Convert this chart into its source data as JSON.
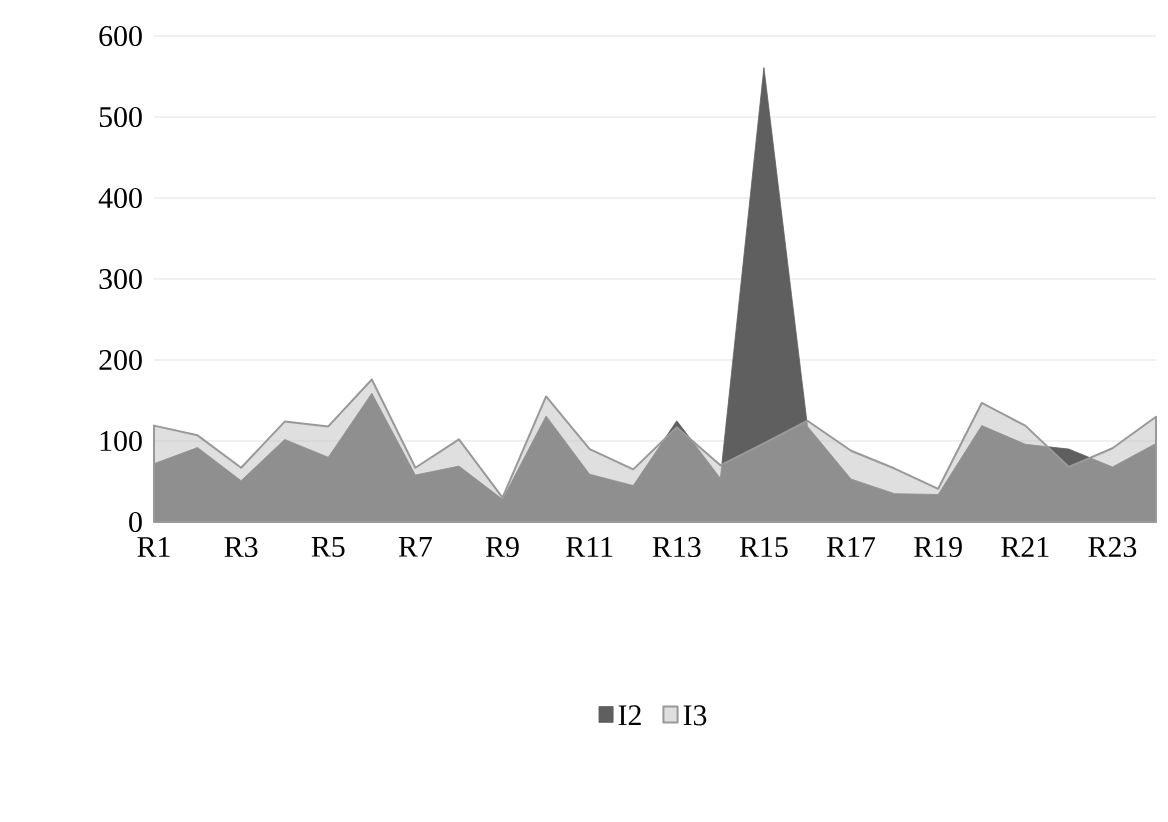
{
  "chart_data": {
    "type": "area",
    "categories": [
      "R1",
      null,
      "R3",
      null,
      "R5",
      null,
      "R7",
      null,
      "R9",
      null,
      "R11",
      null,
      "R13",
      null,
      "R15",
      null,
      "R17",
      null,
      "R19",
      null,
      "R21",
      null,
      "R23",
      null
    ],
    "series": [
      {
        "name": "I2",
        "color": "#5f5f5f",
        "values": [
          72,
          92,
          51,
          102,
          80,
          159,
          58,
          69,
          28,
          131,
          59,
          45,
          125,
          54,
          561,
          118,
          53,
          35,
          34,
          119,
          96,
          90,
          68,
          97
        ]
      },
      {
        "name": "I3",
        "color": "#c0c0c0",
        "values": [
          119,
          107,
          67,
          124,
          118,
          176,
          67,
          102,
          30,
          155,
          90,
          65,
          117,
          70,
          97,
          125,
          88,
          66,
          41,
          147,
          119,
          68,
          91,
          130
        ]
      }
    ],
    "ylim": [
      0,
      600
    ],
    "yticks": [
      0,
      100,
      200,
      300,
      400,
      500,
      600
    ],
    "grid": "y",
    "legend": "bottom"
  }
}
